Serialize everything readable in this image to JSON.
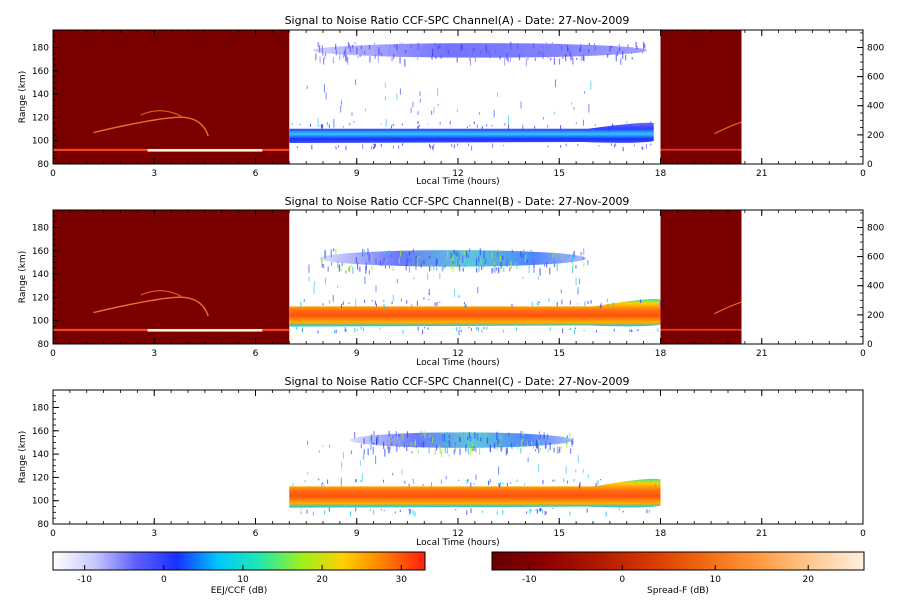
{
  "chart_data": [
    {
      "type": "heatmap",
      "title": "Signal to Noise Ratio CCF-SPC Channel(A) - Date: 27-Nov-2009",
      "xlabel": "Local Time (hours)",
      "ylabel": "Range (km)",
      "xlim": [
        0,
        24
      ],
      "ylim": [
        80,
        195
      ],
      "y2lim": [
        0,
        920
      ],
      "xticks": [
        "0",
        "3",
        "6",
        "9",
        "12",
        "15",
        "18",
        "21",
        "0"
      ],
      "yticks": [
        "80",
        "100",
        "120",
        "140",
        "160",
        "180"
      ],
      "y2ticks": [
        "0",
        "200",
        "400",
        "600",
        "800"
      ],
      "eej_window": [
        7.0,
        18.0
      ],
      "spreadf_windows": [
        [
          0,
          7.0
        ],
        [
          18.0,
          20.4
        ]
      ],
      "layers": [
        {
          "name": "eej",
          "x_start": 7.0,
          "x_end": 17.8,
          "y_bottom": 98,
          "y_top": 112,
          "level": "low"
        },
        {
          "name": "valley",
          "x_start": 7.7,
          "x_end": 17.6,
          "y_bottom": 170,
          "y_top": 185,
          "level": "low"
        }
      ]
    },
    {
      "type": "heatmap",
      "title": "Signal to Noise Ratio CCF-SPC Channel(B) - Date: 27-Nov-2009",
      "xlabel": "Local Time (hours)",
      "ylabel": "Range (km)",
      "xlim": [
        0,
        24
      ],
      "ylim": [
        80,
        195
      ],
      "y2lim": [
        0,
        920
      ],
      "xticks": [
        "0",
        "3",
        "6",
        "9",
        "12",
        "15",
        "18",
        "21",
        "0"
      ],
      "yticks": [
        "80",
        "100",
        "120",
        "140",
        "160",
        "180"
      ],
      "y2ticks": [
        "0",
        "200",
        "400",
        "600",
        "800"
      ],
      "eej_window": [
        7.0,
        18.0
      ],
      "spreadf_windows": [
        [
          0,
          7.0
        ],
        [
          18.0,
          20.4
        ]
      ],
      "layers": [
        {
          "name": "eej",
          "x_start": 7.0,
          "x_end": 18.0,
          "y_bottom": 95,
          "y_top": 114,
          "level": "high"
        },
        {
          "name": "valley",
          "x_start": 7.9,
          "x_end": 15.8,
          "y_bottom": 145,
          "y_top": 162,
          "level": "mid"
        }
      ]
    },
    {
      "type": "heatmap",
      "title": "Signal to Noise Ratio CCF-SPC Channel(C) - Date: 27-Nov-2009",
      "xlabel": "Local Time (hours)",
      "ylabel": "Range (km)",
      "xlim": [
        0,
        24
      ],
      "ylim": [
        80,
        195
      ],
      "xticks": [
        "0",
        "3",
        "6",
        "9",
        "12",
        "15",
        "18",
        "21",
        "0"
      ],
      "yticks": [
        "80",
        "100",
        "120",
        "140",
        "160",
        "180"
      ],
      "eej_window": [
        7.0,
        18.0
      ],
      "spreadf_windows": [],
      "layers": [
        {
          "name": "eej",
          "x_start": 7.0,
          "x_end": 18.0,
          "y_bottom": 94,
          "y_top": 114,
          "level": "high"
        },
        {
          "name": "valley",
          "x_start": 8.8,
          "x_end": 15.4,
          "y_bottom": 144,
          "y_top": 160,
          "level": "mid"
        }
      ]
    }
  ],
  "colorbars": [
    {
      "label": "EEJ/CCF (dB)",
      "ticks": [
        "-10",
        "0",
        "10",
        "20",
        "30"
      ],
      "range": [
        -14,
        33
      ],
      "stops": [
        "#ffffff",
        "#c8c8ff",
        "#6060ff",
        "#1a30ff",
        "#00c8ff",
        "#20e8b0",
        "#9cf020",
        "#ffd000",
        "#ff8000",
        "#ff2010"
      ]
    },
    {
      "label": "Spread-F (dB)",
      "ticks": [
        "-10",
        "0",
        "10",
        "20"
      ],
      "range": [
        -14,
        26
      ],
      "stops": [
        "#660000",
        "#8b0000",
        "#b01a00",
        "#d83a00",
        "#f06a10",
        "#ff9a40",
        "#ffc890",
        "#fff0e0"
      ]
    }
  ],
  "colors": {
    "spreadf_background": "#7a0000",
    "eej_high": "#ff6010",
    "eej_low": "#3a5cff"
  }
}
